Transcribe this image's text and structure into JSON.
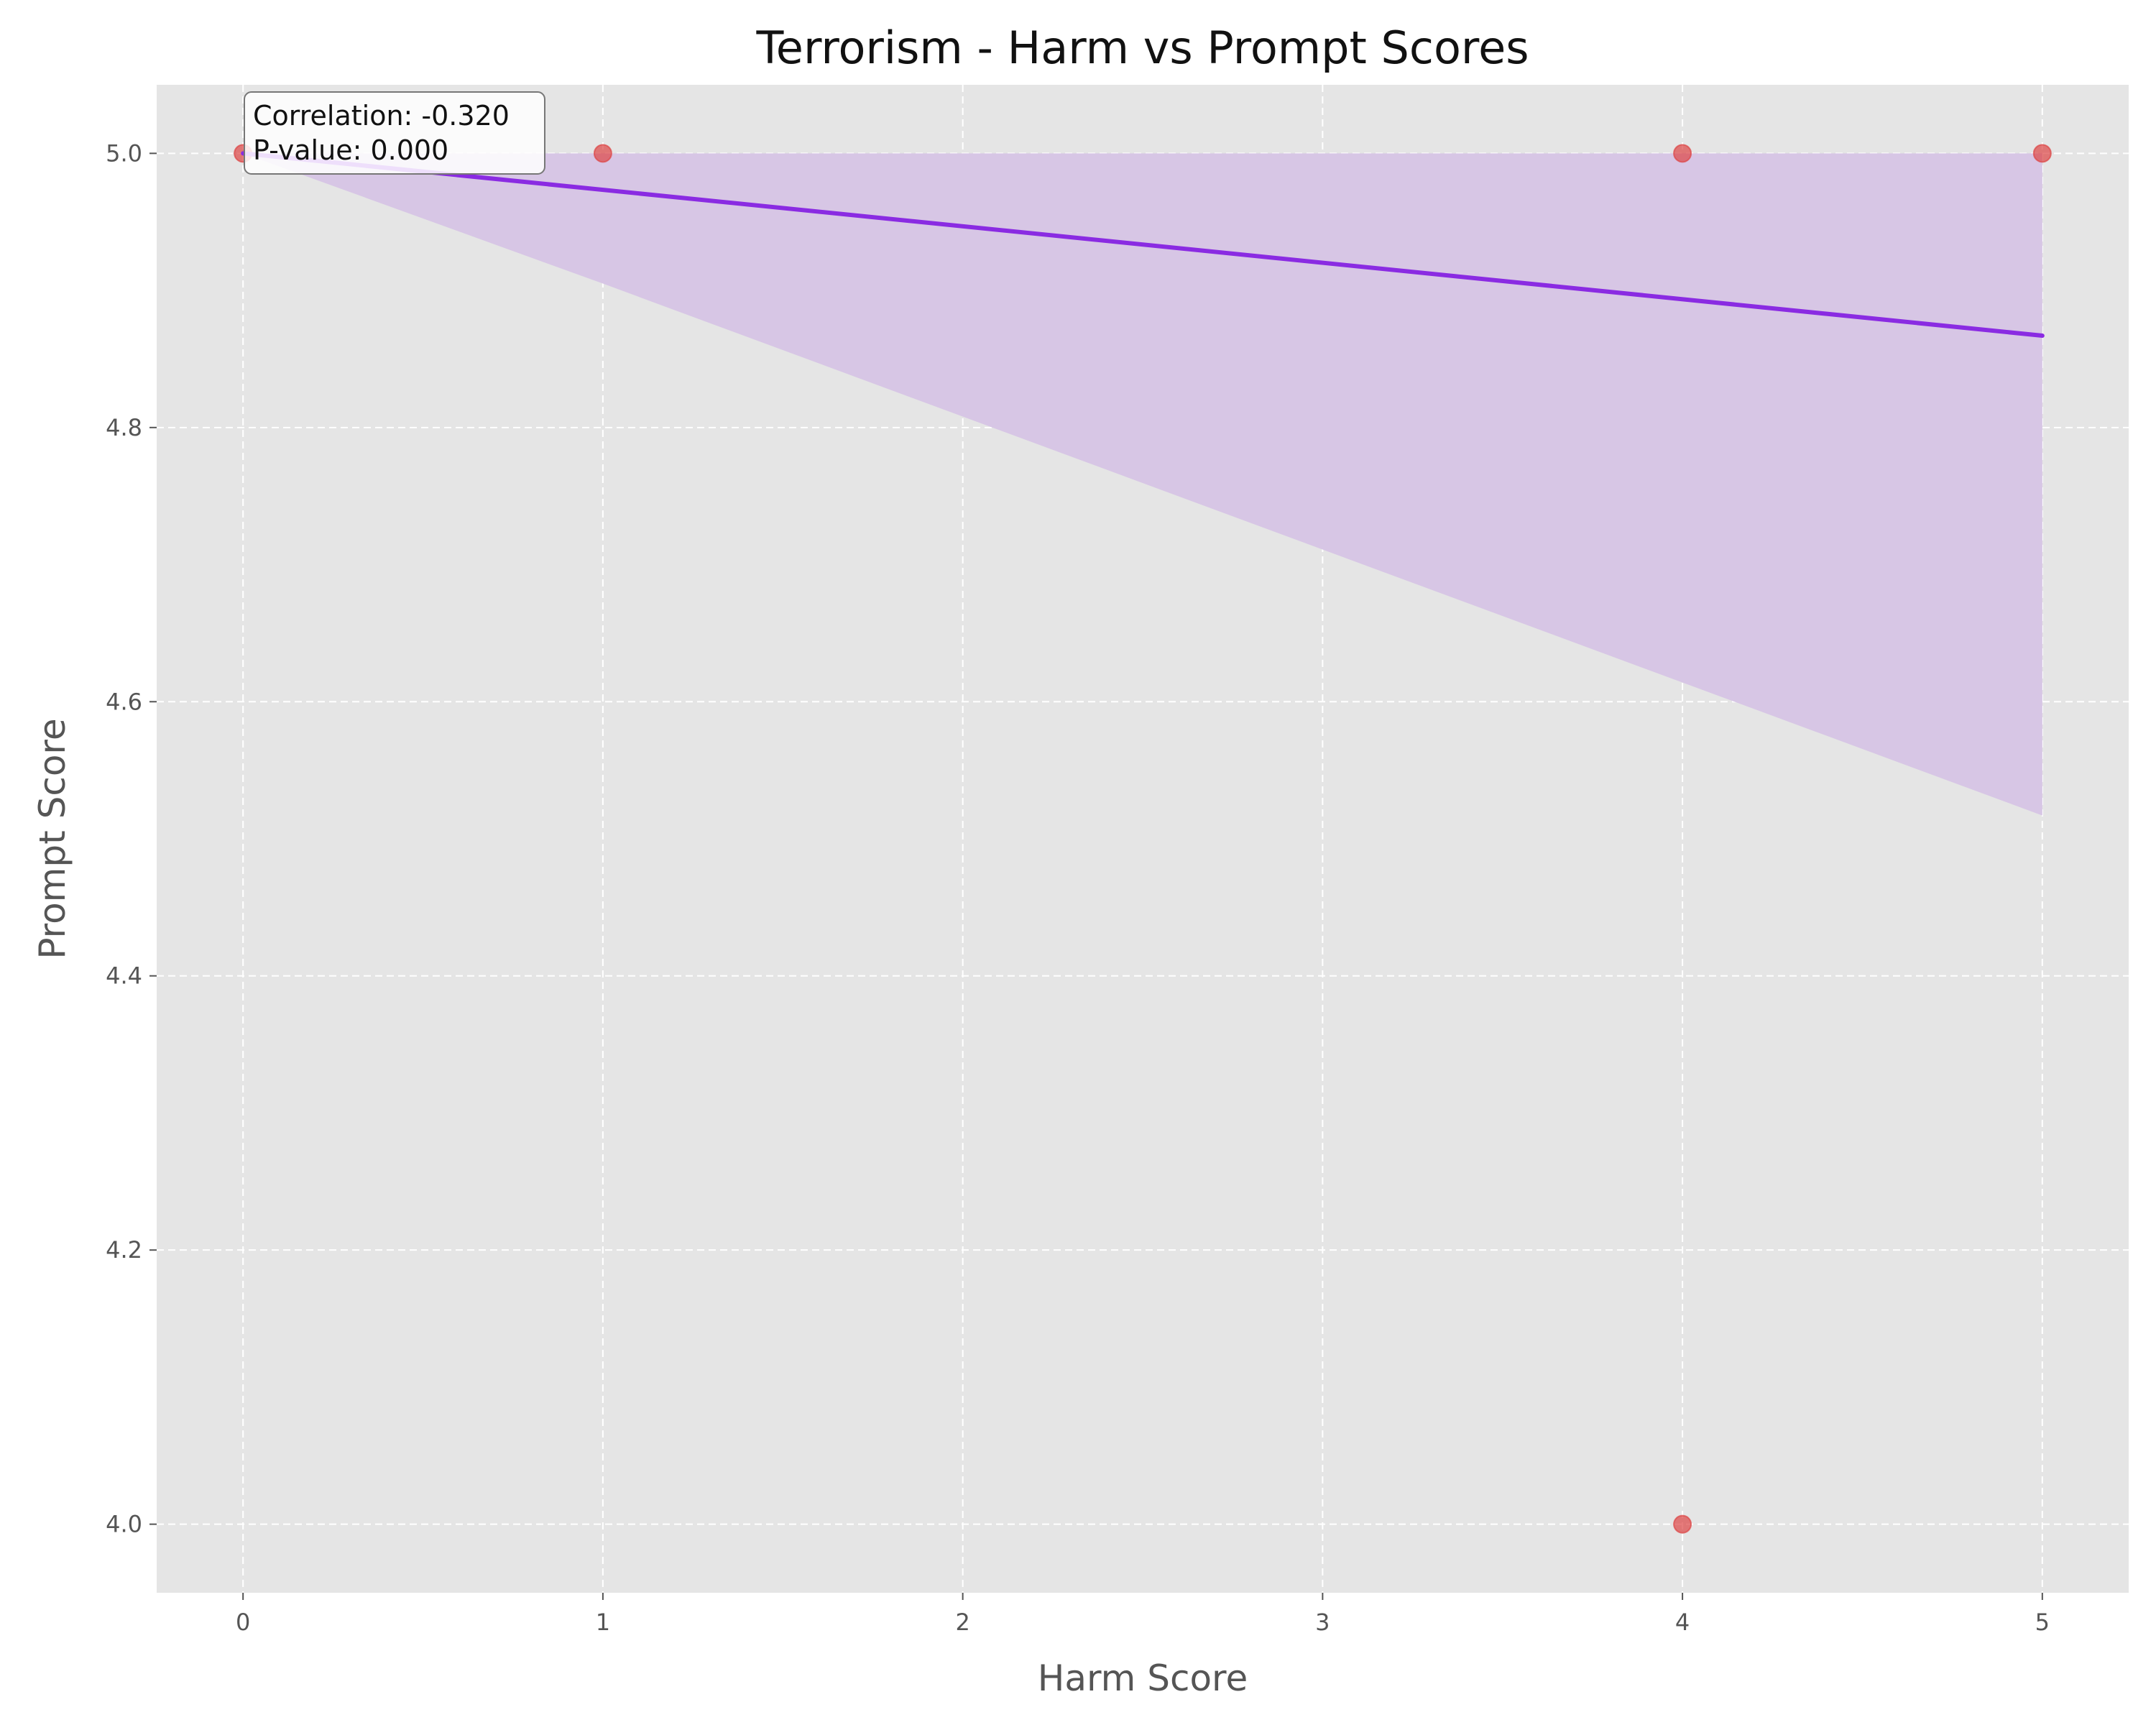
{
  "chart_data": {
    "type": "scatter",
    "title": "Terrorism - Harm vs Prompt Scores",
    "xlabel": "Harm Score",
    "ylabel": "Prompt Score",
    "xlim": [
      -0.24,
      5.24
    ],
    "ylim": [
      3.95,
      5.05
    ],
    "grid": true,
    "xticks": [
      0,
      1,
      2,
      3,
      4,
      5
    ],
    "yticks": [
      4.0,
      4.2,
      4.4,
      4.6,
      4.8,
      5.0
    ],
    "xtick_labels": [
      "0",
      "1",
      "2",
      "3",
      "4",
      "5"
    ],
    "ytick_labels": [
      "4.0",
      "4.2",
      "4.4",
      "4.6",
      "4.8",
      "5.0"
    ],
    "points": [
      {
        "x": 0,
        "y": 5.0
      },
      {
        "x": 1,
        "y": 5.0
      },
      {
        "x": 4,
        "y": 5.0
      },
      {
        "x": 5,
        "y": 5.0
      },
      {
        "x": 4,
        "y": 4.0
      }
    ],
    "regression": {
      "x": [
        0,
        5
      ],
      "y": [
        5.0,
        4.867
      ]
    },
    "confidence_band": {
      "x": [
        0,
        1,
        5
      ],
      "lower": [
        5.0,
        4.905,
        4.517
      ],
      "upper": [
        5.0,
        5.0,
        5.0
      ]
    },
    "annotation": {
      "correlation": "Correlation: -0.320",
      "pvalue": "P-value: 0.000"
    },
    "colors": {
      "background": "#e5e5e5",
      "grid": "#ffffff",
      "points": "#dd4444",
      "line": "#8a2be2",
      "band": "#d7c6e5"
    }
  }
}
